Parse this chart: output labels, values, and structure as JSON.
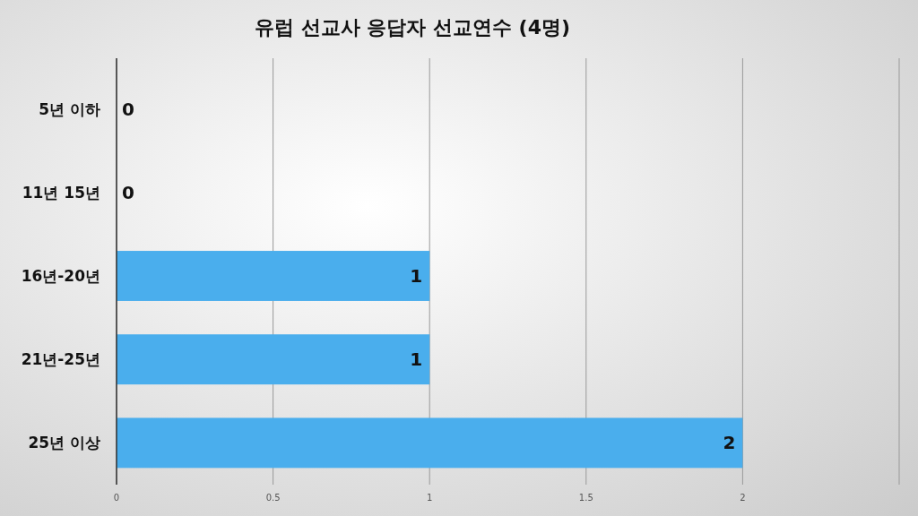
{
  "chart_data": {
    "type": "bar",
    "orientation": "horizontal",
    "title": "유럽 선교사 응답자 선교연수 (4명)",
    "categories": [
      "5년 이하",
      "11년 15년",
      "16년-20년",
      "21년-25년",
      "25년 이상"
    ],
    "values": [
      0,
      0,
      1,
      1,
      2
    ],
    "color": "#4aaeed",
    "data_labels": true,
    "xlim": [
      0,
      2.5
    ],
    "xticks": [
      0,
      0.5,
      1,
      1.5,
      2,
      {
        "value": 2.5,
        "label": null
      }
    ],
    "grid": "x"
  }
}
